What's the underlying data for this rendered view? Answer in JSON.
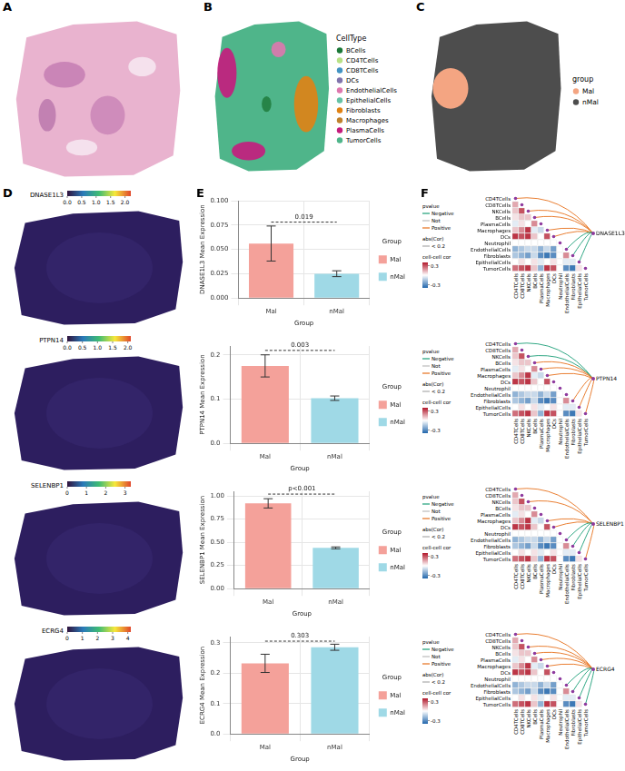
{
  "panel_labels": [
    "A",
    "B",
    "C",
    "D",
    "E",
    "F"
  ],
  "B": {
    "legend_title": "CellType",
    "items": [
      {
        "name": "BCells",
        "color": "#1b7837"
      },
      {
        "name": "CD4TCells",
        "color": "#b8e186"
      },
      {
        "name": "CD8TCells",
        "color": "#4393c3"
      },
      {
        "name": "DCs",
        "color": "#8073ac"
      },
      {
        "name": "EndothelialCells",
        "color": "#de77ae"
      },
      {
        "name": "EpithelialCells",
        "color": "#66c2a5"
      },
      {
        "name": "Fibroblasts",
        "color": "#e08214"
      },
      {
        "name": "Macrophages",
        "color": "#bf812d"
      },
      {
        "name": "PlasmaCells",
        "color": "#c51b7d"
      },
      {
        "name": "TumorCells",
        "color": "#4fb58a"
      }
    ]
  },
  "C": {
    "legend_title": "group",
    "items": [
      {
        "name": "Mal",
        "color": "#f4a582"
      },
      {
        "name": "nMal",
        "color": "#4d4d4d"
      }
    ]
  },
  "D": [
    {
      "gene": "DNASE1L3",
      "colorbar": {
        "lim": [
          0,
          2.2
        ],
        "ticks": [
          {
            "value": 0,
            "label": "0.0"
          },
          0.5,
          {
            "value": 1,
            "label": "1.0"
          },
          1.5,
          {
            "value": 2,
            "label": "2.0"
          }
        ]
      }
    },
    {
      "gene": "PTPN14",
      "colorbar": {
        "lim": [
          0,
          2.1
        ],
        "ticks": [
          {
            "value": 0,
            "label": "0.0"
          },
          0.5,
          {
            "value": 1,
            "label": "1.0"
          },
          1.5,
          {
            "value": 2,
            "label": "2.0"
          }
        ]
      }
    },
    {
      "gene": "SELENBP1",
      "colorbar": {
        "lim": [
          0,
          3.3
        ],
        "ticks": [
          0,
          1,
          2,
          3
        ]
      }
    },
    {
      "gene": "ECRG4",
      "colorbar": {
        "lim": [
          0,
          4.2
        ],
        "ticks": [
          0,
          1,
          2,
          3,
          4
        ]
      }
    }
  ],
  "chart_data": [
    {
      "type": "bar",
      "categories": [
        "Mal",
        "nMal"
      ],
      "series": [
        {
          "name": "Mal",
          "color": "#f4a19a",
          "values": [
            0.056,
            null
          ],
          "error": [
            0.018,
            null
          ]
        },
        {
          "name": "nMal",
          "color": "#9fd9e6",
          "values": [
            null,
            0.025
          ],
          "error": [
            null,
            0.003
          ]
        }
      ],
      "x_label": "Group",
      "y_label": "DNASE1L3 Mean Expression",
      "ylim": [
        0,
        0.1
      ],
      "yticks": [
        {
          "value": 0,
          "label": "0.000"
        },
        0.025,
        {
          "value": 0.05,
          "label": "0.050"
        },
        0.075,
        {
          "value": 0.1,
          "label": "0.100"
        }
      ],
      "grid": true,
      "legend": "right",
      "legend_title": "Group",
      "annotation": {
        "text": "0.019",
        "y": 0.078
      }
    },
    {
      "type": "bar",
      "categories": [
        "Mal",
        "nMal"
      ],
      "series": [
        {
          "name": "Mal",
          "color": "#f4a19a",
          "values": [
            0.175,
            null
          ],
          "error": [
            0.025,
            null
          ]
        },
        {
          "name": "nMal",
          "color": "#9fd9e6",
          "values": [
            null,
            0.102
          ],
          "error": [
            null,
            0.005
          ]
        }
      ],
      "x_label": "Group",
      "y_label": "PTPN14 Mean Expression",
      "ylim": [
        0,
        0.22
      ],
      "yticks": [
        {
          "value": 0,
          "label": "0.0"
        },
        0.1,
        0.2
      ],
      "grid": true,
      "legend": "right",
      "legend_title": "Group",
      "annotation": {
        "text": "0.003",
        "y": 0.21
      }
    },
    {
      "type": "bar",
      "categories": [
        "Mal",
        "nMal"
      ],
      "series": [
        {
          "name": "Mal",
          "color": "#f4a19a",
          "values": [
            0.92,
            null
          ],
          "error": [
            0.05,
            null
          ]
        },
        {
          "name": "nMal",
          "color": "#9fd9e6",
          "values": [
            null,
            0.44
          ],
          "error": [
            null,
            0.01
          ]
        }
      ],
      "x_label": "Group",
      "y_label": "SELENBP1 Mean Expression",
      "ylim": [
        0,
        1.05
      ],
      "yticks": [
        {
          "value": 0,
          "label": "0.00"
        },
        0.25,
        {
          "value": 0.5,
          "label": "0.50"
        },
        0.75,
        {
          "value": 1,
          "label": "1.00"
        }
      ],
      "grid": true,
      "legend": "right",
      "legend_title": "Group",
      "annotation": {
        "text": "p<0.001",
        "y": 1.02
      }
    },
    {
      "type": "bar",
      "categories": [
        "Mal",
        "nMal"
      ],
      "series": [
        {
          "name": "Mal",
          "color": "#f4a19a",
          "values": [
            0.232,
            null
          ],
          "error": [
            0.03,
            null
          ]
        },
        {
          "name": "nMal",
          "color": "#9fd9e6",
          "values": [
            null,
            0.285
          ],
          "error": [
            null,
            0.01
          ]
        }
      ],
      "x_label": "Group",
      "y_label": "ECRG4 Mean Expression",
      "ylim": [
        0,
        0.32
      ],
      "yticks": [
        {
          "value": 0,
          "label": "0.0"
        },
        0.1,
        0.2,
        0.3
      ],
      "grid": true,
      "legend": "right",
      "legend_title": "Group",
      "annotation": {
        "text": "0.303",
        "y": 0.305
      }
    }
  ],
  "F": {
    "cells": [
      "CD4TCells",
      "CD8TCells",
      "NKCells",
      "BCells",
      "PlasmaCells",
      "Macrophages",
      "DCs",
      "Neutrophil",
      "EndothelialCells",
      "Fibroblasts",
      "EpithelialCells",
      "TumorCells"
    ],
    "cor": [
      [],
      [
        0.15
      ],
      [
        0.1,
        0.3
      ],
      [
        0.05,
        0.1,
        0.1
      ],
      [
        -0.05,
        0.05,
        0.0,
        0.2
      ],
      [
        0.1,
        0.2,
        0.35,
        -0.05,
        -0.1
      ],
      [
        0.35,
        0.3,
        0.35,
        0.1,
        0.0,
        0.3
      ],
      [
        0.0,
        0.0,
        0.0,
        0.0,
        0.0,
        0.0,
        0.0
      ],
      [
        -0.2,
        -0.15,
        -0.1,
        -0.1,
        -0.2,
        -0.1,
        -0.25,
        0.0
      ],
      [
        -0.15,
        -0.2,
        -0.25,
        -0.1,
        -0.3,
        -0.35,
        -0.3,
        0.0,
        0.2
      ],
      [
        0.0,
        0.05,
        0.0,
        0.05,
        -0.05,
        0.0,
        0.05,
        0.0,
        -0.05,
        -0.05
      ],
      [
        0.25,
        0.3,
        0.35,
        0.1,
        -0.2,
        0.35,
        0.3,
        0.0,
        -0.3,
        -0.35,
        0.05
      ]
    ],
    "cor_legend_title": "cell-cell cor",
    "cor_lim": [
      -0.4,
      0.4
    ],
    "cor_ticks": [
      -0.3,
      0.3
    ],
    "pvalue_title": "pvalue",
    "pvalue_items": [
      {
        "name": "Negative",
        "color": "#1b9e77"
      },
      {
        "name": "Not",
        "color": "#bbbbbb"
      },
      {
        "name": "Positive",
        "color": "#e6701c"
      }
    ],
    "abs_title": "abs(Cor)",
    "abs_items": [
      "< 0.2"
    ],
    "panels": [
      {
        "gene": "DNASE1L3",
        "links": [
          {
            "cell": "CD4TCells",
            "pvalue": "Positive"
          },
          {
            "cell": "NKCells",
            "pvalue": "Positive"
          },
          {
            "cell": "BCells",
            "pvalue": "Positive"
          },
          {
            "cell": "Macrophages",
            "pvalue": "Positive"
          },
          {
            "cell": "DCs",
            "pvalue": "Positive"
          },
          {
            "cell": "EndothelialCells",
            "pvalue": "Negative"
          },
          {
            "cell": "Fibroblasts",
            "pvalue": "Negative"
          },
          {
            "cell": "EpithelialCells",
            "pvalue": "Negative"
          }
        ]
      },
      {
        "gene": "PTPN14",
        "links": [
          {
            "cell": "CD4TCells",
            "pvalue": "Negative"
          },
          {
            "cell": "NKCells",
            "pvalue": "Negative"
          },
          {
            "cell": "BCells",
            "pvalue": "Positive"
          },
          {
            "cell": "PlasmaCells",
            "pvalue": "Positive"
          },
          {
            "cell": "Macrophages",
            "pvalue": "Positive"
          },
          {
            "cell": "Fibroblasts",
            "pvalue": "Positive"
          },
          {
            "cell": "EpithelialCells",
            "pvalue": "Positive"
          },
          {
            "cell": "TumorCells",
            "pvalue": "Positive"
          }
        ]
      },
      {
        "gene": "SELENBP1",
        "links": [
          {
            "cell": "CD4TCells",
            "pvalue": "Positive"
          },
          {
            "cell": "NKCells",
            "pvalue": "Positive"
          },
          {
            "cell": "Macrophages",
            "pvalue": "Positive"
          },
          {
            "cell": "DCs",
            "pvalue": "Positive"
          },
          {
            "cell": "EndothelialCells",
            "pvalue": "Negative"
          },
          {
            "cell": "Fibroblasts",
            "pvalue": "Negative"
          },
          {
            "cell": "EpithelialCells",
            "pvalue": "Negative"
          },
          {
            "cell": "TumorCells",
            "pvalue": "Positive"
          }
        ]
      },
      {
        "gene": "ECRG4",
        "links": [
          {
            "cell": "CD4TCells",
            "pvalue": "Positive"
          },
          {
            "cell": "NKCells",
            "pvalue": "Positive"
          },
          {
            "cell": "BCells",
            "pvalue": "Positive"
          },
          {
            "cell": "PlasmaCells",
            "pvalue": "Positive"
          },
          {
            "cell": "Macrophages",
            "pvalue": "Positive"
          },
          {
            "cell": "EndothelialCells",
            "pvalue": "Negative"
          },
          {
            "cell": "Fibroblasts",
            "pvalue": "Negative"
          },
          {
            "cell": "EpithelialCells",
            "pvalue": "Negative"
          },
          {
            "cell": "TumorCells",
            "pvalue": "Negative"
          }
        ]
      }
    ]
  }
}
